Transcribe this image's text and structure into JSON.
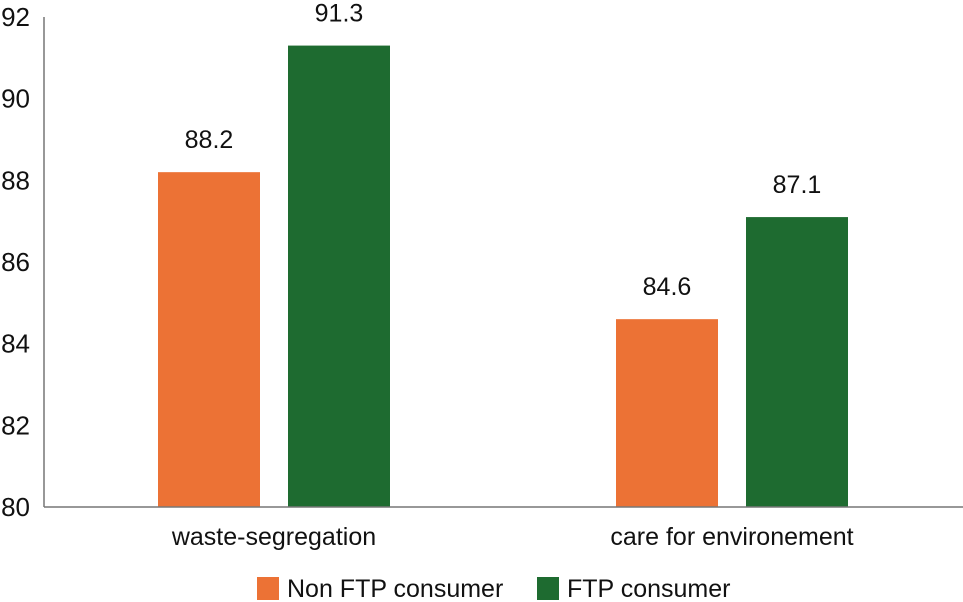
{
  "chart_data": {
    "type": "bar",
    "title": "",
    "xlabel": "",
    "ylabel": "",
    "ylim": [
      80,
      92
    ],
    "yticks": [
      80,
      82,
      84,
      86,
      88,
      90,
      92
    ],
    "categories": [
      "waste-segregation",
      "care for environement"
    ],
    "series": [
      {
        "name": "Non FTP consumer",
        "color": "#EC7235",
        "values": [
          88.2,
          84.6
        ],
        "labels": [
          "88.2",
          "84.6"
        ]
      },
      {
        "name": "FTP consumer",
        "color": "#1E6B30",
        "values": [
          91.3,
          87.1
        ],
        "labels": [
          "91.3",
          "87.1"
        ]
      }
    ],
    "grid": false,
    "legend": "bottom"
  }
}
